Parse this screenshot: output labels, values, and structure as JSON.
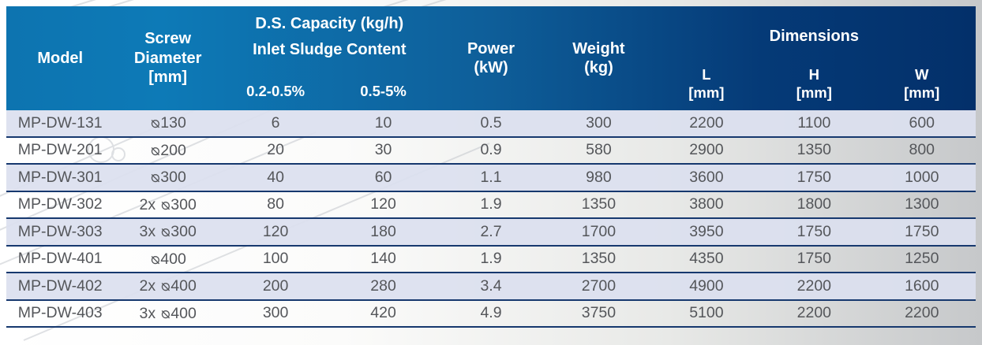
{
  "theme": {
    "page_bg_left": "#ffffff",
    "page_bg_right": "#c6c8ca",
    "header_gradient_left": "#0d74b0",
    "header_gradient_mid": "#0d7ab7",
    "header_gradient_dark": "#0e5e99",
    "header_gradient_deep": "#053a77",
    "header_gradient_right": "#03306a",
    "header_text": "#ffffff",
    "row_odd_bg": "rgba(219,223,239,0.92)",
    "separator": "#16386e",
    "body_text": "#54565a",
    "watermark_line": "#b9bdc4"
  },
  "table": {
    "header": {
      "model": "Model",
      "screw": {
        "line1": "Screw",
        "line2": "Diameter",
        "unit": "[mm]"
      },
      "ds_group": {
        "title": "D.S. Capacity (kg/h)",
        "subtitle": "Inlet Sludge Content",
        "col_low": "0.2-0.5%",
        "col_high": "0.5-5%"
      },
      "power": {
        "line1": "Power",
        "line2": "(kW)"
      },
      "weight": {
        "line1": "Weight",
        "line2": "(kg)"
      },
      "dimensions": {
        "title": "Dimensions",
        "l": "L",
        "h": "H",
        "w": "W",
        "unit": "[mm]"
      }
    },
    "diameter_symbol": "⌀",
    "rows": [
      {
        "model": "MP-DW-131",
        "screw_prefix": "",
        "screw_diameter": "130",
        "capacity_0_2_to_0_5": "6",
        "capacity_0_5_to_5": "10",
        "power_kw": "0.5",
        "weight_kg": "300",
        "l_mm": "2200",
        "h_mm": "1100",
        "w_mm": "600"
      },
      {
        "model": "MP-DW-201",
        "screw_prefix": "",
        "screw_diameter": "200",
        "capacity_0_2_to_0_5": "20",
        "capacity_0_5_to_5": "30",
        "power_kw": "0.9",
        "weight_kg": "580",
        "l_mm": "2900",
        "h_mm": "1350",
        "w_mm": "800"
      },
      {
        "model": "MP-DW-301",
        "screw_prefix": "",
        "screw_diameter": "300",
        "capacity_0_2_to_0_5": "40",
        "capacity_0_5_to_5": "60",
        "power_kw": "1.1",
        "weight_kg": "980",
        "l_mm": "3600",
        "h_mm": "1750",
        "w_mm": "1000"
      },
      {
        "model": "MP-DW-302",
        "screw_prefix": "2x",
        "screw_diameter": "300",
        "capacity_0_2_to_0_5": "80",
        "capacity_0_5_to_5": "120",
        "power_kw": "1.9",
        "weight_kg": "1350",
        "l_mm": "3800",
        "h_mm": "1800",
        "w_mm": "1300"
      },
      {
        "model": "MP-DW-303",
        "screw_prefix": "3x",
        "screw_diameter": "300",
        "capacity_0_2_to_0_5": "120",
        "capacity_0_5_to_5": "180",
        "power_kw": "2.7",
        "weight_kg": "1700",
        "l_mm": "3950",
        "h_mm": "1750",
        "w_mm": "1750"
      },
      {
        "model": "MP-DW-401",
        "screw_prefix": "",
        "screw_diameter": "400",
        "capacity_0_2_to_0_5": "100",
        "capacity_0_5_to_5": "140",
        "power_kw": "1.9",
        "weight_kg": "1350",
        "l_mm": "4350",
        "h_mm": "1750",
        "w_mm": "1250"
      },
      {
        "model": "MP-DW-402",
        "screw_prefix": "2x",
        "screw_diameter": "400",
        "capacity_0_2_to_0_5": "200",
        "capacity_0_5_to_5": "280",
        "power_kw": "3.4",
        "weight_kg": "2700",
        "l_mm": "4900",
        "h_mm": "2200",
        "w_mm": "1600"
      },
      {
        "model": "MP-DW-403",
        "screw_prefix": "3x",
        "screw_diameter": "400",
        "capacity_0_2_to_0_5": "300",
        "capacity_0_5_to_5": "420",
        "power_kw": "4.9",
        "weight_kg": "3750",
        "l_mm": "5100",
        "h_mm": "2200",
        "w_mm": "2200"
      }
    ]
  }
}
